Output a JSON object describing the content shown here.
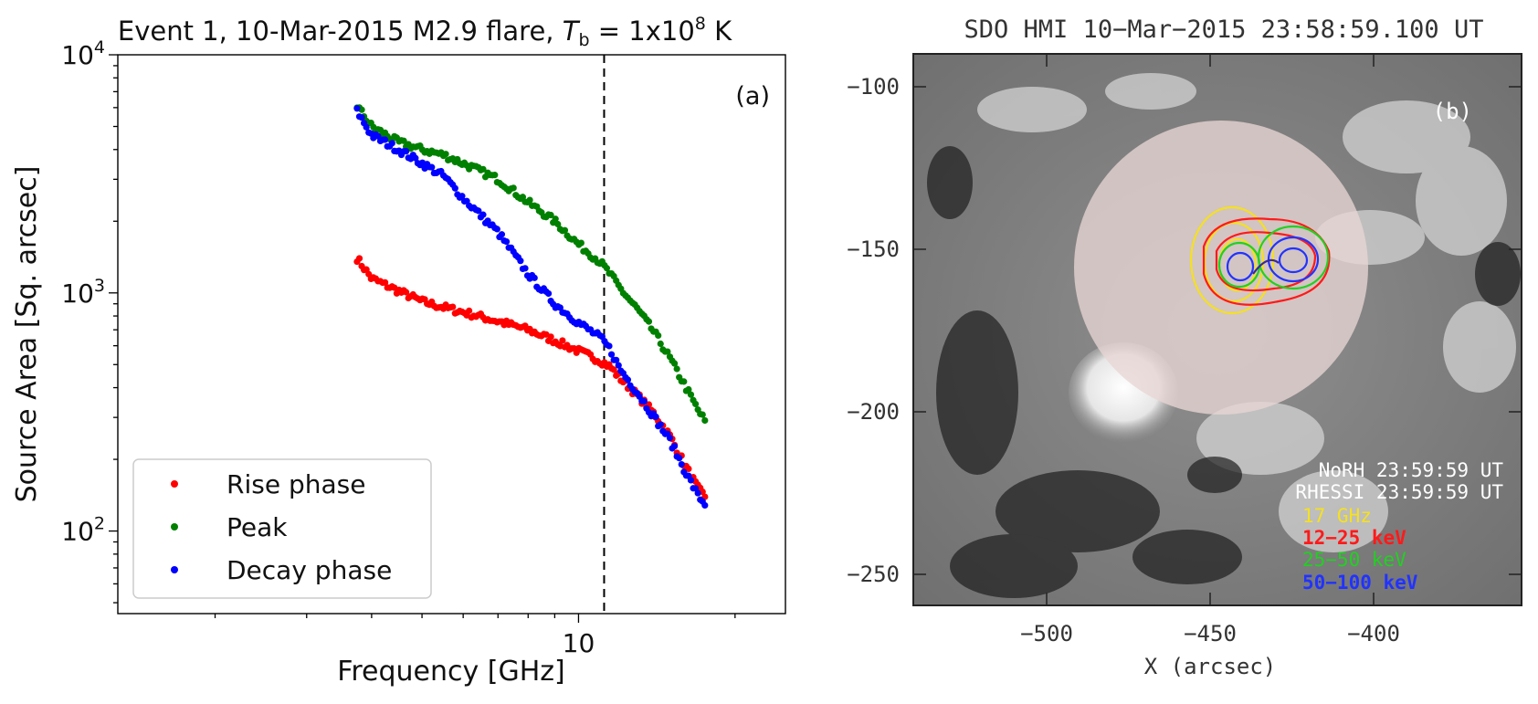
{
  "panels": {
    "a": {
      "title_prefix": "Event 1, 10-Mar-2015 M2.9 flare, ",
      "title_tb_symbol": "T",
      "title_tb_sub": "b",
      "title_tb_eq": " = 1x10",
      "title_tb_exp": "8",
      "title_tb_unit": " K",
      "panel_label": "(a)"
    },
    "b": {
      "title": "SDO HMI 10−Mar−2015 23:58:59.100 UT",
      "panel_label": "(b)",
      "xlabel": "X (arcsec)",
      "x_ticks": [
        "−500",
        "−450",
        "−400"
      ],
      "y_ticks": [
        "−100",
        "−150",
        "−200",
        "−250"
      ],
      "annotation_norh": "NoRH 23:59:59 UT",
      "annotation_rhessi": "RHESSI 23:59:59 UT",
      "contour_legend": [
        {
          "label": "17 GHz",
          "color": "#f5e020"
        },
        {
          "label": "12−25 keV",
          "color": "#ff1a1a"
        },
        {
          "label": "25−50 keV",
          "color": "#22d022"
        },
        {
          "label": "50−100 keV",
          "color": "#2233ff"
        }
      ]
    }
  },
  "chart_data": [
    {
      "type": "scatter",
      "title": "Event 1, 10-Mar-2015 M2.9 flare, T_b = 1x10^8 K",
      "xlabel": "Frequency [GHz]",
      "ylabel": "Source Area [Sq. arcsec]",
      "xscale": "log",
      "yscale": "log",
      "xlim": [
        1.3,
        25
      ],
      "ylim": [
        45,
        10000
      ],
      "x_ticks": [
        {
          "value": 10,
          "label": "10"
        }
      ],
      "y_ticks": [
        {
          "value": 100,
          "base": "10",
          "exp": "2"
        },
        {
          "value": 1000,
          "base": "10",
          "exp": "3"
        },
        {
          "value": 10000,
          "base": "10",
          "exp": "4"
        }
      ],
      "vline_x": 11.2,
      "legend_position": "lower-left",
      "series": [
        {
          "name": "Rise phase",
          "color": "#ff0000",
          "x": [
            3.75,
            4,
            4.5,
            5,
            5.5,
            6,
            7,
            8,
            9,
            10,
            11,
            11.5,
            12,
            13,
            14,
            15,
            16,
            17,
            17.5
          ],
          "values": [
            1400,
            1150,
            1020,
            920,
            870,
            830,
            760,
            700,
            630,
            570,
            520,
            490,
            440,
            370,
            310,
            250,
            190,
            150,
            140
          ]
        },
        {
          "name": "Peak",
          "color": "#008000",
          "x": [
            3.75,
            4,
            4.5,
            5,
            5.5,
            6,
            7,
            8,
            9,
            10,
            11,
            11.5,
            12,
            13,
            14,
            15,
            16,
            17,
            17.5
          ],
          "values": [
            6100,
            5000,
            4300,
            4000,
            3800,
            3500,
            3000,
            2400,
            2000,
            1600,
            1350,
            1200,
            1050,
            850,
            680,
            530,
            410,
            320,
            290
          ]
        },
        {
          "name": "Decay phase",
          "color": "#0000ff",
          "x": [
            3.75,
            4,
            4.5,
            5,
            5.5,
            6,
            7,
            8,
            9,
            10,
            11,
            11.5,
            12,
            13,
            14,
            15,
            16,
            17,
            17.5
          ],
          "values": [
            5800,
            4600,
            4000,
            3500,
            3100,
            2500,
            1800,
            1200,
            900,
            750,
            650,
            580,
            480,
            380,
            300,
            240,
            180,
            140,
            130
          ]
        }
      ]
    }
  ]
}
